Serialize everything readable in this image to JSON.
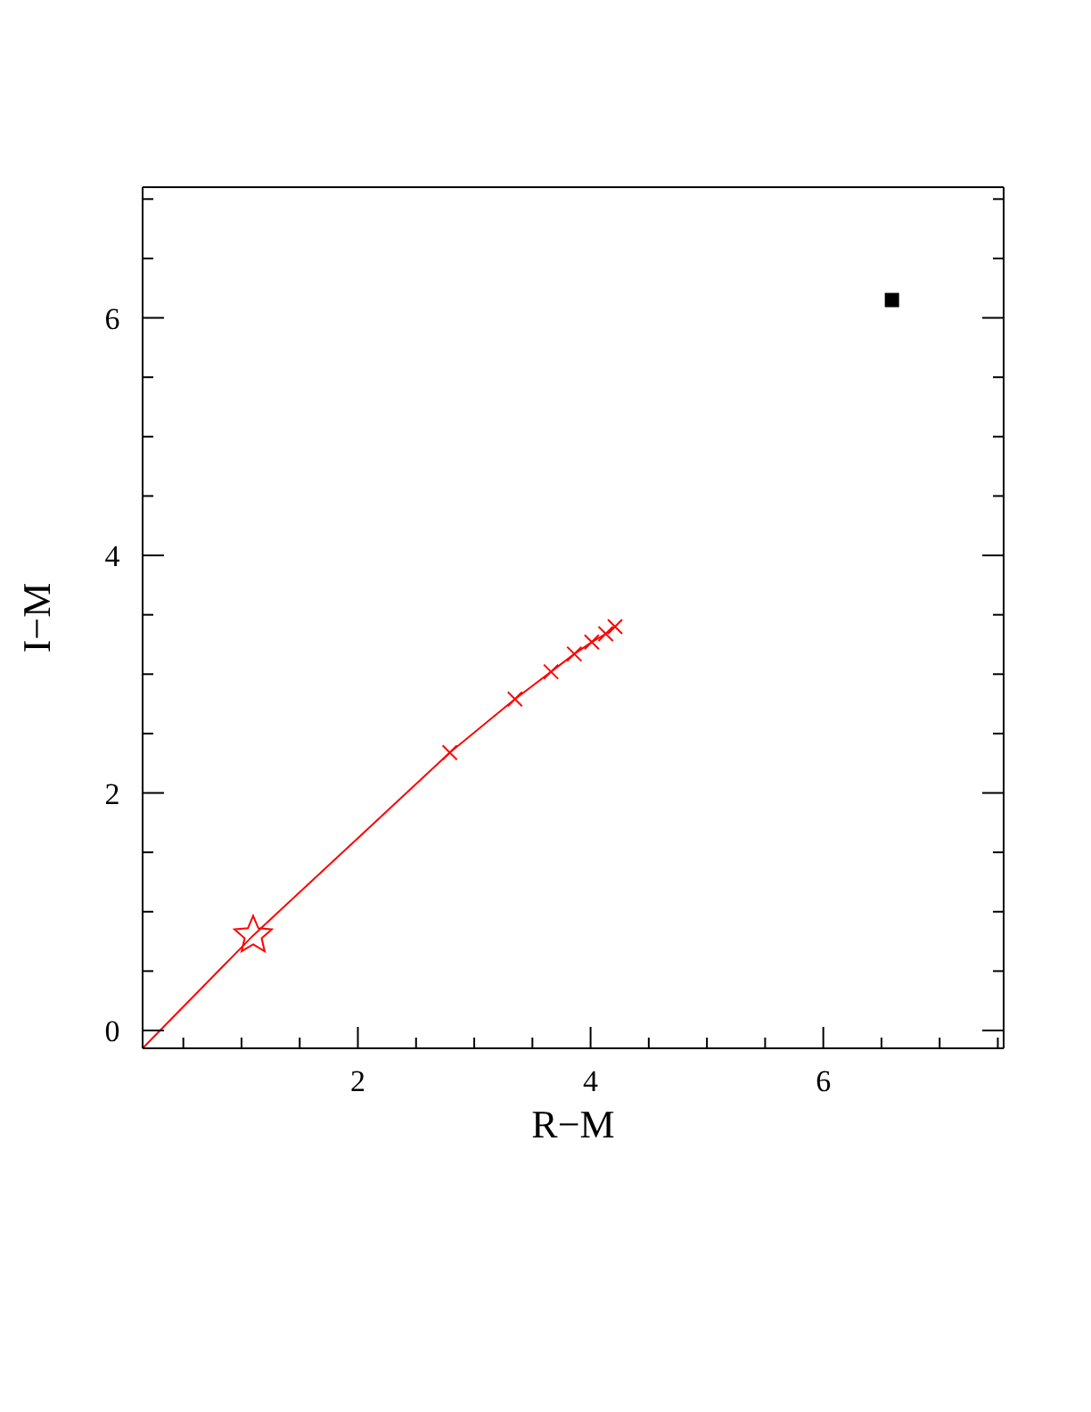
{
  "chart_data": {
    "type": "scatter",
    "xlabel": "R−M",
    "ylabel": "I−M",
    "xlim": [
      0.15,
      7.55
    ],
    "ylim": [
      -0.15,
      7.1
    ],
    "xticks": [
      {
        "value": 0.5,
        "label": null
      },
      {
        "value": 1,
        "label": null
      },
      {
        "value": 1.5,
        "label": null
      },
      2,
      {
        "value": 2.5,
        "label": null
      },
      {
        "value": 3,
        "label": null
      },
      {
        "value": 3.5,
        "label": null
      },
      4,
      {
        "value": 4.5,
        "label": null
      },
      {
        "value": 5,
        "label": null
      },
      {
        "value": 5.5,
        "label": null
      },
      6,
      {
        "value": 6.5,
        "label": null
      },
      {
        "value": 7,
        "label": null
      },
      {
        "value": 7.5,
        "label": null
      }
    ],
    "yticks": [
      0,
      {
        "value": 0.5,
        "label": null
      },
      {
        "value": 1,
        "label": null
      },
      {
        "value": 1.5,
        "label": null
      },
      2,
      {
        "value": 2.5,
        "label": null
      },
      {
        "value": 3,
        "label": null
      },
      {
        "value": 3.5,
        "label": null
      },
      4,
      {
        "value": 4.5,
        "label": null
      },
      {
        "value": 5,
        "label": null
      },
      {
        "value": 5.5,
        "label": null
      },
      6,
      {
        "value": 6.5,
        "label": null
      },
      {
        "value": 7,
        "label": null
      }
    ],
    "series": [
      {
        "type": "line",
        "color": "#ff0000",
        "marker": "none",
        "line_style": "solid",
        "x": [
          0.15,
          1.1,
          2.0,
          2.79,
          3.35,
          3.66,
          3.86,
          4.01,
          4.13,
          4.21
        ],
        "values": [
          -0.15,
          0.8,
          1.62,
          2.34,
          2.79,
          3.02,
          3.17,
          3.27,
          3.34,
          3.4
        ]
      },
      {
        "type": "scatter",
        "color": "#ff0000",
        "marker": "cross",
        "x": [
          2.79,
          3.35,
          3.66,
          3.86,
          4.01,
          4.13,
          4.21
        ],
        "values": [
          2.34,
          2.79,
          3.02,
          3.17,
          3.27,
          3.34,
          3.4
        ]
      },
      {
        "type": "scatter",
        "color": "#ff0000",
        "marker": "star",
        "x": [
          1.1
        ],
        "values": [
          0.8
        ]
      },
      {
        "type": "scatter",
        "color": "#000000",
        "marker": "square",
        "x": [
          6.59
        ],
        "values": [
          6.15
        ]
      }
    ]
  }
}
